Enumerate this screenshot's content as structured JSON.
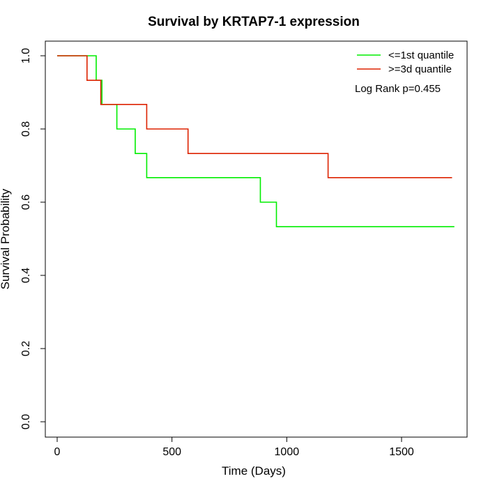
{
  "chart_data": {
    "type": "line",
    "title": "Survival by KRTAP7-1 expression",
    "xlabel": "Time (Days)",
    "ylabel": "Survival Probability",
    "xlim": [
      0,
      1750
    ],
    "ylim": [
      0,
      1.0
    ],
    "x_ticks": [
      0,
      500,
      1000,
      1500
    ],
    "x_tick_labels": [
      "0",
      "500",
      "1000",
      "1500"
    ],
    "y_ticks": [
      0.0,
      0.2,
      0.4,
      0.6,
      0.8,
      1.0
    ],
    "y_tick_labels": [
      "0.0",
      "0.2",
      "0.4",
      "0.6",
      "0.8",
      "1.0"
    ],
    "grid": false,
    "legend_position": "top-right",
    "annotation": "Log Rank p=0.455",
    "series": [
      {
        "name": "<=1st quantile",
        "color": "#00ee00",
        "step": "post",
        "x": [
          0,
          170,
          195,
          260,
          340,
          390,
          885,
          955,
          1730
        ],
        "y": [
          1.0,
          0.933,
          0.867,
          0.8,
          0.733,
          0.667,
          0.6,
          0.533,
          0.533
        ]
      },
      {
        "name": ">=3d quantile",
        "color": "#dd2200",
        "step": "post",
        "x": [
          0,
          130,
          190,
          390,
          570,
          1180,
          1720
        ],
        "y": [
          1.0,
          0.933,
          0.867,
          0.8,
          0.733,
          0.667,
          0.667
        ]
      }
    ]
  }
}
